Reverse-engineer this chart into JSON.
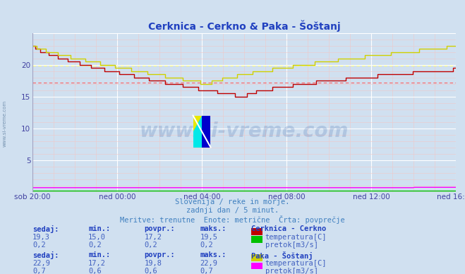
{
  "title": "Cerknica - Cerkno & Paka - Šoštanj",
  "bg_color": "#d0e0f0",
  "plot_bg_color": "#d0e0f0",
  "grid_color": "#ffffff",
  "xlabel_color": "#4040a0",
  "ylabel_color": "#4040a0",
  "title_color": "#2040c0",
  "watermark_text": "www.si-vreme.com",
  "watermark_color": "#2050a0",
  "subtitle1": "Slovenija / reke in morje.",
  "subtitle2": "zadnji dan / 5 minut.",
  "subtitle3": "Meritve: trenutne  Enote: metrične  Črta: povprečje",
  "subtitle_color": "#4080c0",
  "xtick_labels": [
    "sob 20:00",
    "ned 00:00",
    "ned 04:00",
    "ned 08:00",
    "ned 12:00",
    "ned 16:00"
  ],
  "xtick_positions": [
    0,
    48,
    96,
    144,
    192,
    240
  ],
  "ylim": [
    0,
    25
  ],
  "yticks": [
    0,
    5,
    10,
    15,
    20,
    25
  ],
  "total_points": 289,
  "cerknica_temp_color": "#c00000",
  "cerknica_flow_color": "#00c000",
  "paka_temp_color": "#d0d000",
  "paka_flow_color": "#ff00ff",
  "avg_line_color_red": "#ff6060",
  "avg_line_color_yellow": "#ffff80",
  "avg_red_value": 17.2,
  "avg_yellow_value": 19.8,
  "table_header_color": "#2040c0",
  "table_value_color": "#4060c0",
  "station1_name": "Cerknica - Cerkno",
  "station1_temp_sedaj": "19,3",
  "station1_temp_min": "15,0",
  "station1_temp_povpr": "17,2",
  "station1_temp_maks": "19,5",
  "station1_flow_sedaj": "0,2",
  "station1_flow_min": "0,2",
  "station1_flow_povpr": "0,2",
  "station1_flow_maks": "0,2",
  "station2_name": "Paka - Šoštanj",
  "station2_temp_sedaj": "22,9",
  "station2_temp_min": "17,2",
  "station2_temp_povpr": "19,8",
  "station2_temp_maks": "22,9",
  "station2_flow_sedaj": "0,7",
  "station2_flow_min": "0,6",
  "station2_flow_povpr": "0,6",
  "station2_flow_maks": "0,7"
}
